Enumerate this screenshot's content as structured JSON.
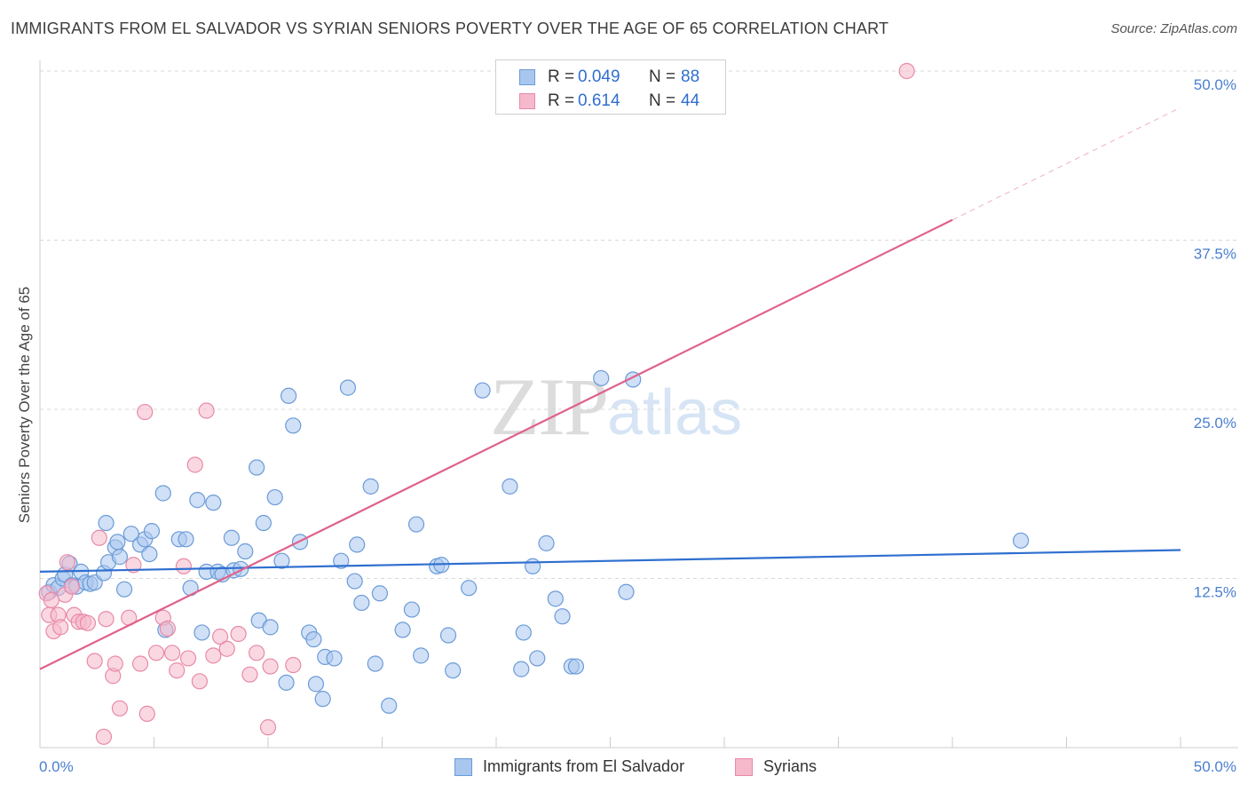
{
  "title": "IMMIGRANTS FROM EL SALVADOR VS SYRIAN SENIORS POVERTY OVER THE AGE OF 65 CORRELATION CHART",
  "source": "Source: ZipAtlas.com",
  "watermark": {
    "zip": "ZIP",
    "atlas": "atlas"
  },
  "legend_top": {
    "rows": [
      {
        "r_label": "R =",
        "r_value": "0.049",
        "n_label": "N =",
        "n_value": "88"
      },
      {
        "r_label": "R =",
        "r_value": "0.614",
        "n_label": "N =",
        "n_value": "44"
      }
    ]
  },
  "legend_bottom": {
    "items": [
      {
        "label": "Immigrants from El Salvador"
      },
      {
        "label": "Syrians"
      }
    ]
  },
  "colors": {
    "blue_fill": "#a9c6ee",
    "blue_stroke": "#6b9bd8",
    "blue_line": "#2f6fd0",
    "pink_fill": "#f6b8cb",
    "pink_stroke": "#e88aa8",
    "pink_line": "#e0628c",
    "grid": "#d9d9d9",
    "tick_label": "#4a7fd0"
  },
  "chart_data": {
    "type": "scatter",
    "title": "IMMIGRANTS FROM EL SALVADOR VS SYRIAN SENIORS POVERTY OVER THE AGE OF 65 CORRELATION CHART",
    "xlabel": "",
    "ylabel": "Seniors Poverty Over the Age of 65",
    "xlim": [
      0,
      50
    ],
    "ylim": [
      0,
      52
    ],
    "x_tick_labels": [
      {
        "value": 0,
        "label": "0.0%"
      },
      {
        "value": 50,
        "label": "50.0%"
      }
    ],
    "y_tick_labels": [
      {
        "value": 12.5,
        "label": "12.5%"
      },
      {
        "value": 25,
        "label": "25.0%"
      },
      {
        "value": 37.5,
        "label": "37.5%"
      },
      {
        "value": 50,
        "label": "50.0%"
      }
    ],
    "grid": true,
    "legend_position": "top-center",
    "series": [
      {
        "name": "Immigrants from El Salvador",
        "color": "#a9c6ee",
        "trend": {
          "x": [
            0,
            50
          ],
          "y": [
            13.0,
            14.6
          ]
        },
        "points": [
          [
            0.4,
            11.5
          ],
          [
            0.6,
            12.0
          ],
          [
            0.8,
            11.8
          ],
          [
            1.0,
            12.5
          ],
          [
            1.1,
            12.8
          ],
          [
            1.3,
            13.6
          ],
          [
            1.4,
            12.0
          ],
          [
            1.6,
            11.9
          ],
          [
            1.8,
            13.0
          ],
          [
            2.0,
            12.2
          ],
          [
            2.2,
            12.1
          ],
          [
            2.4,
            12.2
          ],
          [
            2.8,
            12.9
          ],
          [
            2.9,
            16.6
          ],
          [
            3.0,
            13.7
          ],
          [
            3.3,
            14.8
          ],
          [
            3.4,
            15.2
          ],
          [
            3.5,
            14.1
          ],
          [
            3.7,
            11.7
          ],
          [
            4.0,
            15.8
          ],
          [
            4.4,
            15.0
          ],
          [
            4.6,
            15.4
          ],
          [
            4.9,
            16.0
          ],
          [
            4.8,
            14.3
          ],
          [
            5.4,
            18.8
          ],
          [
            5.5,
            8.7
          ],
          [
            6.1,
            15.4
          ],
          [
            6.4,
            15.4
          ],
          [
            6.6,
            11.8
          ],
          [
            6.9,
            18.3
          ],
          [
            7.1,
            8.5
          ],
          [
            7.3,
            13.0
          ],
          [
            7.6,
            18.1
          ],
          [
            7.8,
            13.0
          ],
          [
            8.0,
            12.8
          ],
          [
            8.4,
            15.5
          ],
          [
            8.5,
            13.1
          ],
          [
            8.8,
            13.2
          ],
          [
            9.0,
            14.5
          ],
          [
            9.5,
            20.7
          ],
          [
            9.6,
            9.4
          ],
          [
            9.8,
            16.6
          ],
          [
            10.1,
            8.9
          ],
          [
            10.3,
            18.5
          ],
          [
            10.6,
            13.8
          ],
          [
            10.8,
            4.8
          ],
          [
            10.9,
            26.0
          ],
          [
            11.1,
            23.8
          ],
          [
            11.4,
            15.2
          ],
          [
            11.8,
            8.5
          ],
          [
            12.0,
            8.0
          ],
          [
            12.1,
            4.7
          ],
          [
            12.4,
            3.6
          ],
          [
            12.5,
            6.7
          ],
          [
            12.9,
            6.6
          ],
          [
            13.2,
            13.8
          ],
          [
            13.5,
            26.6
          ],
          [
            13.8,
            12.3
          ],
          [
            13.9,
            15.0
          ],
          [
            14.1,
            10.7
          ],
          [
            14.5,
            19.3
          ],
          [
            14.7,
            6.2
          ],
          [
            14.9,
            11.4
          ],
          [
            15.3,
            3.1
          ],
          [
            15.9,
            8.7
          ],
          [
            16.3,
            10.2
          ],
          [
            16.5,
            16.5
          ],
          [
            16.7,
            6.8
          ],
          [
            17.4,
            13.4
          ],
          [
            17.6,
            13.5
          ],
          [
            17.9,
            8.3
          ],
          [
            18.1,
            5.7
          ],
          [
            18.8,
            11.8
          ],
          [
            19.4,
            26.4
          ],
          [
            20.6,
            19.3
          ],
          [
            21.1,
            5.8
          ],
          [
            21.2,
            8.5
          ],
          [
            21.6,
            13.4
          ],
          [
            21.8,
            6.6
          ],
          [
            22.2,
            15.1
          ],
          [
            22.6,
            11.0
          ],
          [
            22.9,
            9.7
          ],
          [
            23.3,
            6.0
          ],
          [
            23.5,
            6.0
          ],
          [
            24.6,
            27.3
          ],
          [
            25.7,
            11.5
          ],
          [
            26.0,
            27.2
          ],
          [
            43.0,
            15.3
          ]
        ]
      },
      {
        "name": "Syrians",
        "color": "#f6b8cb",
        "trend": {
          "x": [
            0,
            40
          ],
          "y": [
            5.8,
            39.0
          ]
        },
        "trend_dashed_to": {
          "x": 50,
          "y": 47.3
        },
        "points": [
          [
            0.3,
            11.4
          ],
          [
            0.4,
            9.8
          ],
          [
            0.5,
            10.9
          ],
          [
            0.6,
            8.6
          ],
          [
            0.8,
            9.8
          ],
          [
            0.9,
            8.9
          ],
          [
            1.1,
            11.3
          ],
          [
            1.2,
            13.7
          ],
          [
            1.4,
            11.9
          ],
          [
            1.5,
            9.8
          ],
          [
            1.7,
            9.3
          ],
          [
            1.9,
            9.3
          ],
          [
            2.1,
            9.2
          ],
          [
            2.4,
            6.4
          ],
          [
            2.6,
            15.5
          ],
          [
            2.8,
            0.8
          ],
          [
            2.9,
            9.5
          ],
          [
            3.2,
            5.3
          ],
          [
            3.3,
            6.2
          ],
          [
            3.5,
            2.9
          ],
          [
            3.9,
            9.6
          ],
          [
            4.1,
            13.5
          ],
          [
            4.4,
            6.2
          ],
          [
            4.6,
            24.8
          ],
          [
            4.7,
            2.5
          ],
          [
            5.1,
            7.0
          ],
          [
            5.4,
            9.6
          ],
          [
            5.6,
            8.8
          ],
          [
            5.8,
            7.0
          ],
          [
            6.0,
            5.7
          ],
          [
            6.3,
            13.4
          ],
          [
            6.5,
            6.6
          ],
          [
            6.8,
            20.9
          ],
          [
            7.0,
            4.9
          ],
          [
            7.3,
            24.9
          ],
          [
            7.6,
            6.8
          ],
          [
            7.9,
            8.2
          ],
          [
            8.2,
            7.3
          ],
          [
            8.7,
            8.4
          ],
          [
            9.2,
            5.4
          ],
          [
            9.5,
            7.0
          ],
          [
            10.0,
            1.5
          ],
          [
            10.1,
            6.0
          ],
          [
            11.1,
            6.1
          ],
          [
            38.0,
            50.0
          ]
        ]
      }
    ]
  }
}
